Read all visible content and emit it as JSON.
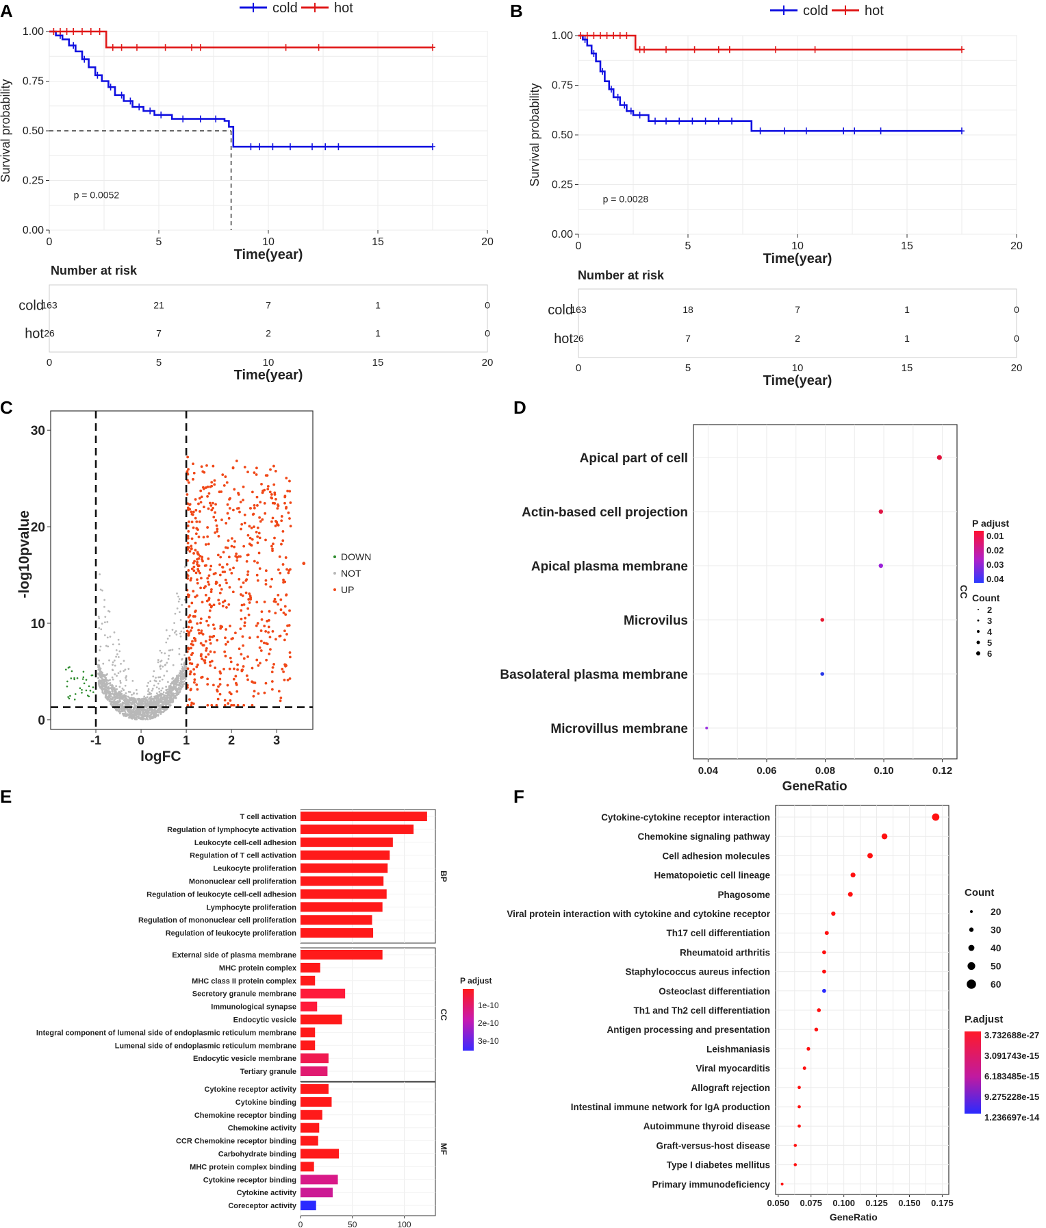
{
  "chart_data": [
    {
      "id": "A",
      "type": "line",
      "subtype": "kaplan-meier",
      "panel_label": "A",
      "legend": [
        {
          "name": "cold",
          "color": "#1010e0"
        },
        {
          "name": "hot",
          "color": "#e01818"
        }
      ],
      "ylabel": "Survival probability",
      "xlabel": "Time(year)",
      "xlim": [
        0,
        20
      ],
      "ylim": [
        0,
        1
      ],
      "x_ticks": [
        "0",
        "5",
        "10",
        "15",
        "20"
      ],
      "y_ticks": [
        "0.00",
        "0.25",
        "0.50",
        "0.75",
        "1.00"
      ],
      "p_text": "p = 0.0052",
      "median_line": {
        "x": 8.3,
        "y": 0.5
      },
      "series": [
        {
          "name": "cold",
          "color": "#1010e0",
          "steps": [
            [
              0,
              1
            ],
            [
              0.3,
              0.98
            ],
            [
              0.6,
              0.96
            ],
            [
              0.9,
              0.93
            ],
            [
              1.2,
              0.9
            ],
            [
              1.5,
              0.86
            ],
            [
              1.8,
              0.82
            ],
            [
              2.1,
              0.78
            ],
            [
              2.4,
              0.75
            ],
            [
              2.7,
              0.72
            ],
            [
              3,
              0.68
            ],
            [
              3.4,
              0.65
            ],
            [
              3.8,
              0.62
            ],
            [
              4.3,
              0.6
            ],
            [
              4.8,
              0.58
            ],
            [
              5.5,
              0.58
            ],
            [
              5.6,
              0.56
            ],
            [
              8,
              0.55
            ],
            [
              8.2,
              0.52
            ],
            [
              8.4,
              0.42
            ],
            [
              17.5,
              0.42
            ]
          ],
          "censors": [
            0.5,
            1.1,
            1.6,
            2.2,
            2.8,
            3.3,
            3.7,
            4.1,
            4.6,
            5.1,
            6.1,
            6.9,
            7.6,
            9.2,
            9.6,
            10.2,
            11,
            12,
            12.6,
            13.2,
            17.5
          ]
        },
        {
          "name": "hot",
          "color": "#e01818",
          "steps": [
            [
              0,
              1
            ],
            [
              2.6,
              1
            ],
            [
              2.6,
              0.92
            ],
            [
              17.5,
              0.92
            ]
          ],
          "censors": [
            0.2,
            0.5,
            0.8,
            1.1,
            1.5,
            1.9,
            2.3,
            2.9,
            3.3,
            4,
            5.3,
            6.5,
            6.9,
            10.8,
            12.3,
            17.5
          ]
        }
      ],
      "risk": {
        "title": "Number at risk",
        "xlabel": "Time(year)",
        "x_ticks": [
          "0",
          "5",
          "10",
          "15",
          "20"
        ],
        "rows": [
          {
            "label": "cold",
            "values": [
              "163",
              "21",
              "7",
              "1",
              "0"
            ]
          },
          {
            "label": "hot",
            "values": [
              "26",
              "7",
              "2",
              "1",
              "0"
            ]
          }
        ]
      }
    },
    {
      "id": "B",
      "type": "line",
      "subtype": "kaplan-meier",
      "panel_label": "B",
      "legend": [
        {
          "name": "cold",
          "color": "#1010e0"
        },
        {
          "name": "hot",
          "color": "#e01818"
        }
      ],
      "ylabel": "Survival probability",
      "xlabel": "Time(year)",
      "xlim": [
        0,
        20
      ],
      "ylim": [
        0,
        1
      ],
      "x_ticks": [
        "0",
        "5",
        "10",
        "15",
        "20"
      ],
      "y_ticks": [
        "0.00",
        "0.25",
        "0.50",
        "0.75",
        "1.00"
      ],
      "p_text": "p = 0.0028",
      "series": [
        {
          "name": "cold",
          "color": "#1010e0",
          "steps": [
            [
              0,
              1
            ],
            [
              0.2,
              0.98
            ],
            [
              0.4,
              0.95
            ],
            [
              0.6,
              0.91
            ],
            [
              0.8,
              0.87
            ],
            [
              1,
              0.82
            ],
            [
              1.2,
              0.77
            ],
            [
              1.4,
              0.73
            ],
            [
              1.6,
              0.69
            ],
            [
              1.9,
              0.65
            ],
            [
              2.2,
              0.62
            ],
            [
              2.5,
              0.6
            ],
            [
              3.2,
              0.57
            ],
            [
              7.8,
              0.57
            ],
            [
              7.9,
              0.52
            ],
            [
              17.5,
              0.52
            ]
          ],
          "censors": [
            0.3,
            0.7,
            1.1,
            1.5,
            1.8,
            2.1,
            2.4,
            2.8,
            3.5,
            4,
            4.6,
            5.2,
            5.8,
            6.4,
            7,
            8.3,
            9.4,
            10.4,
            12.1,
            12.6,
            13.8,
            17.5
          ]
        },
        {
          "name": "hot",
          "color": "#e01818",
          "steps": [
            [
              0,
              1
            ],
            [
              2.6,
              1
            ],
            [
              2.6,
              0.93
            ],
            [
              17.5,
              0.93
            ]
          ],
          "censors": [
            0.1,
            0.4,
            0.7,
            1,
            1.3,
            1.6,
            1.9,
            2.2,
            2.8,
            3,
            4,
            5.3,
            6.4,
            6.9,
            9,
            10.8,
            17.5
          ]
        }
      ],
      "risk": {
        "title": "Number at risk",
        "xlabel": "Time(year)",
        "x_ticks": [
          "0",
          "5",
          "10",
          "15",
          "20"
        ],
        "rows": [
          {
            "label": "cold",
            "values": [
              "163",
              "18",
              "7",
              "1",
              "0"
            ]
          },
          {
            "label": "hot",
            "values": [
              "26",
              "7",
              "2",
              "1",
              "0"
            ]
          }
        ]
      }
    },
    {
      "id": "C",
      "type": "scatter",
      "subtype": "volcano",
      "panel_label": "C",
      "xlabel": "logFC",
      "ylabel": "-log10pvalue",
      "xlim": [
        -2.0,
        3.8
      ],
      "ylim": [
        -1,
        32
      ],
      "x_ticks": [
        -1,
        0,
        1,
        2,
        3
      ],
      "y_ticks": [
        0,
        10,
        20,
        30
      ],
      "x_tick_labels": [
        "-1",
        "0",
        "1",
        "2",
        "3"
      ],
      "y_tick_labels": [
        "0",
        "10",
        "20",
        "30"
      ],
      "cutoffs": {
        "logfc": [
          -1,
          1
        ],
        "neg_log10p": 1.3
      },
      "legend": [
        {
          "name": "DOWN",
          "color": "#2e8b2e"
        },
        {
          "name": "NOT",
          "color": "#b8b8b8"
        },
        {
          "name": "UP",
          "color": "#f04818"
        }
      ]
    },
    {
      "id": "D",
      "type": "scatter",
      "subtype": "dotplot",
      "panel_label": "D",
      "xlabel": "GeneRatio",
      "xlim": [
        0.035,
        0.125
      ],
      "x_ticks": [
        "0.04",
        "0.06",
        "0.08",
        "0.10",
        "0.12"
      ],
      "facet": "CC",
      "terms": [
        "Apical part of cell",
        "Actin-based cell projection",
        "Apical plasma membrane",
        "Microvilus",
        "Basolateral plasma membrane",
        "Microvillus membrane"
      ],
      "values": [
        0.119,
        0.099,
        0.099,
        0.079,
        0.079,
        0.0395
      ],
      "counts": [
        6,
        5,
        5,
        4,
        4,
        2
      ],
      "colors": [
        "#e0103a",
        "#e01545",
        "#9a20d8",
        "#e81830",
        "#2838e8",
        "#9a30e0"
      ],
      "legend_color": {
        "title": "P adjust",
        "labels": [
          "0.01",
          "0.02",
          "0.03",
          "0.04"
        ]
      },
      "legend_size": {
        "title": "Count",
        "labels": [
          "2",
          "3",
          "4",
          "5",
          "6"
        ]
      }
    },
    {
      "id": "E",
      "type": "bar",
      "orientation": "horizontal",
      "panel_label": "E",
      "x_ticks": [
        0,
        50,
        100
      ],
      "x_tick_labels": [
        "0",
        "50",
        "100"
      ],
      "xlim": [
        0,
        130
      ],
      "legend_color": {
        "title": "P adjust",
        "labels": [
          "1e-10",
          "2e-10",
          "3e-10"
        ]
      },
      "facets": [
        {
          "name": "BP",
          "categories": [
            "T cell activation",
            "Regulation of lymphocyte activation",
            "Leukocyte cell-cell adhesion",
            "Regulation of T cell activation",
            "Leukocyte proliferation",
            "Mononuclear cell proliferation",
            "Regulation of leukocyte cell-cell adhesion",
            "Lymphocyte proliferation",
            "Regulation of mononuclear cell proliferation",
            "Regulation of leukocyte proliferation"
          ],
          "values": [
            122,
            109,
            89,
            86,
            84,
            80,
            83,
            79,
            69,
            70
          ],
          "colors": [
            "#ff1a1a",
            "#ff1a1a",
            "#ff1a1a",
            "#ff1a1a",
            "#ff1a1a",
            "#ff1a1a",
            "#ff1a1a",
            "#ff1a1a",
            "#ff1a1a",
            "#ff1a1a"
          ]
        },
        {
          "name": "CC",
          "categories": [
            "External side of plasma membrane",
            "MHC protein complex",
            "MHC class II protein complex",
            "Secretory granule membrane",
            "Immunological synapse",
            "Endocytic vesicle",
            "Integral component of lumenal side of endoplasmic reticulum membrane",
            "Lumenal side of endoplasmic reticulum membrane",
            "Endocytic vesicle membrane",
            "Tertiary granule"
          ],
          "values": [
            79,
            19,
            14,
            43,
            16,
            40,
            14,
            14,
            27,
            26
          ],
          "colors": [
            "#ff1a1a",
            "#ff1a1a",
            "#ff1a1a",
            "#ff1a3a",
            "#ff1a3a",
            "#ff1a1a",
            "#ff1a1a",
            "#ff1a1a",
            "#f01a50",
            "#e01a70"
          ]
        },
        {
          "name": "MF",
          "categories": [
            "Cytokine receptor activity",
            "Cytokine binding",
            "Chemokine receptor binding",
            "Chemokine activity",
            "CCR Chemokine receptor binding",
            "Carbohydrate binding",
            "MHC protein complex binding",
            "Cytokine receptor binding",
            "Cytokine activity",
            "Coreceptor activity"
          ],
          "values": [
            27,
            30,
            21,
            18,
            17,
            37,
            13,
            36,
            31,
            15
          ],
          "colors": [
            "#ff1a1a",
            "#ff1a1a",
            "#ff1a1a",
            "#ff1a1a",
            "#ff1a1a",
            "#ff1a1a",
            "#ff1a1a",
            "#d81a88",
            "#cc1a94",
            "#2a2aff"
          ]
        }
      ]
    },
    {
      "id": "F",
      "type": "scatter",
      "subtype": "dotplot",
      "panel_label": "F",
      "xlabel": "GeneRatio",
      "xlim": [
        0.048,
        0.18
      ],
      "x_ticks": [
        "0.050",
        "0.075",
        "0.100",
        "0.125",
        "0.150",
        "0.175"
      ],
      "terms": [
        "Cytokine-cytokine receptor interaction",
        "Chemokine signaling pathway",
        "Cell adhesion molecules",
        "Hematopoietic cell lineage",
        "Phagosome",
        "Viral protein interaction with cytokine and cytokine receptor",
        "Th17 cell differentiation",
        "Rheumatoid arthritis",
        "Staphylococcus aureus infection",
        "Osteoclast differentiation",
        "Th1 and Th2 cell differentiation",
        "Antigen processing and presentation",
        "Leishmaniasis",
        "Viral myocarditis",
        "Allograft rejection",
        "Intestinal immune network for IgA production",
        "Autoimmune thyroid disease",
        "Graft-versus-host disease",
        "Type I diabetes mellitus",
        "Primary immunodeficiency"
      ],
      "values": [
        0.17,
        0.131,
        0.12,
        0.107,
        0.105,
        0.092,
        0.087,
        0.085,
        0.085,
        0.085,
        0.081,
        0.079,
        0.073,
        0.07,
        0.066,
        0.066,
        0.066,
        0.063,
        0.063,
        0.053
      ],
      "counts": [
        65,
        50,
        46,
        41,
        40,
        35,
        33,
        32,
        32,
        32,
        31,
        30,
        28,
        27,
        25,
        25,
        25,
        24,
        24,
        20
      ],
      "colors": [
        "#ff1010",
        "#ff1010",
        "#ff1010",
        "#ff1010",
        "#ff1010",
        "#ff1010",
        "#ff1010",
        "#ff1010",
        "#ff1010",
        "#2a2aff",
        "#ff1010",
        "#ff1010",
        "#ff1010",
        "#ff1010",
        "#ff1010",
        "#ff1010",
        "#ff1010",
        "#ff1010",
        "#ff1010",
        "#ff1010"
      ],
      "legend_size": {
        "title": "Count",
        "labels": [
          "20",
          "30",
          "40",
          "50",
          "60"
        ]
      },
      "legend_color": {
        "title": "P.adjust",
        "labels": [
          "3.732688e-27",
          "3.091743e-15",
          "6.183485e-15",
          "9.275228e-15",
          "1.236697e-14"
        ]
      }
    }
  ]
}
